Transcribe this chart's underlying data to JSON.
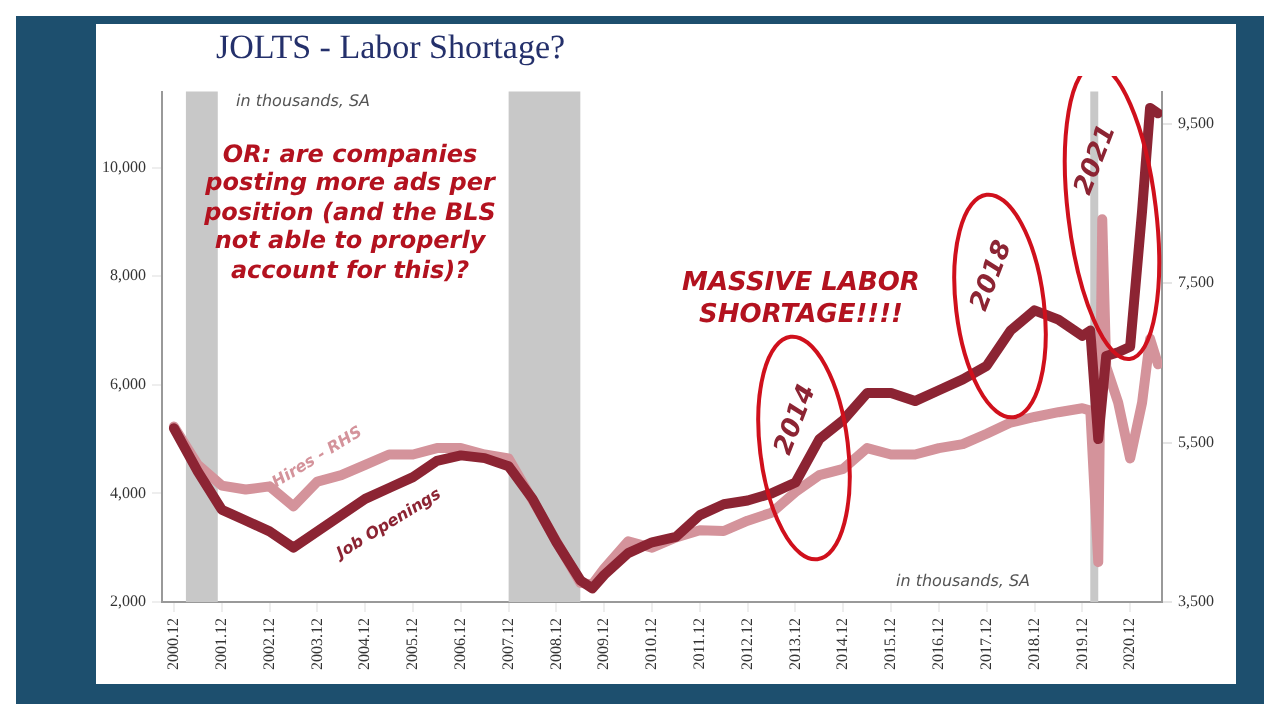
{
  "chart_data": {
    "type": "line",
    "title": "JOLTS - Labor Shortage?",
    "annotations": [
      "in thousands, SA",
      "OR: are companies posting more ads per position (and the BLS not able to properly account for this)?",
      "MASSIVE LABOR SHORTAGE!!!!",
      "in thousands, SA",
      "2014",
      "2018",
      "2021"
    ],
    "series": [
      {
        "name": "Hires - RHS",
        "color": "#d4939b",
        "axis": "y2",
        "x": [
          "2000-12",
          "2001-06",
          "2001-12",
          "2002-06",
          "2002-12",
          "2003-06",
          "2003-12",
          "2004-06",
          "2004-12",
          "2005-06",
          "2005-12",
          "2006-06",
          "2006-12",
          "2007-06",
          "2007-12",
          "2008-06",
          "2008-12",
          "2009-06",
          "2009-09",
          "2009-12",
          "2010-06",
          "2010-12",
          "2011-06",
          "2011-12",
          "2012-06",
          "2012-12",
          "2013-06",
          "2013-12",
          "2014-06",
          "2014-12",
          "2015-06",
          "2015-12",
          "2016-06",
          "2016-12",
          "2017-06",
          "2017-12",
          "2018-06",
          "2018-12",
          "2019-06",
          "2019-12",
          "2020-02",
          "2020-04",
          "2020-05",
          "2020-06",
          "2020-09",
          "2020-12",
          "2021-03",
          "2021-05",
          "2021-07"
        ],
        "values": [
          5700,
          5220,
          4960,
          4910,
          4950,
          4700,
          5010,
          5090,
          5220,
          5350,
          5350,
          5430,
          5430,
          5350,
          5300,
          4780,
          4260,
          3740,
          3720,
          3920,
          4260,
          4180,
          4310,
          4400,
          4390,
          4520,
          4620,
          4880,
          5090,
          5170,
          5430,
          5350,
          5350,
          5430,
          5480,
          5610,
          5750,
          5820,
          5880,
          5930,
          5900,
          4000,
          8300,
          6450,
          6000,
          5300,
          6000,
          6800,
          6480
        ]
      },
      {
        "name": "Job Openings",
        "color": "#8c2433",
        "axis": "y",
        "x": [
          "2000-12",
          "2001-06",
          "2001-12",
          "2002-06",
          "2002-12",
          "2003-06",
          "2003-12",
          "2004-06",
          "2004-12",
          "2005-06",
          "2005-12",
          "2006-06",
          "2006-12",
          "2007-06",
          "2007-12",
          "2008-06",
          "2008-12",
          "2009-06",
          "2009-09",
          "2009-12",
          "2010-06",
          "2010-12",
          "2011-06",
          "2011-12",
          "2012-06",
          "2012-12",
          "2013-06",
          "2013-12",
          "2014-06",
          "2014-12",
          "2015-06",
          "2015-12",
          "2016-06",
          "2016-12",
          "2017-06",
          "2017-12",
          "2018-06",
          "2018-12",
          "2019-06",
          "2019-12",
          "2020-02",
          "2020-04",
          "2020-06",
          "2020-09",
          "2020-12",
          "2021-03",
          "2021-05",
          "2021-07"
        ],
        "values": [
          5200,
          4400,
          3700,
          3500,
          3300,
          3000,
          3300,
          3600,
          3900,
          4100,
          4300,
          4600,
          4700,
          4650,
          4500,
          3900,
          3100,
          2400,
          2250,
          2500,
          2900,
          3100,
          3200,
          3600,
          3800,
          3870,
          4000,
          4200,
          5000,
          5350,
          5850,
          5850,
          5700,
          5900,
          6100,
          6350,
          7000,
          7370,
          7200,
          6900,
          7000,
          5000,
          6530,
          6600,
          6700,
          9200,
          11100,
          11000
        ]
      }
    ],
    "xlim": [
      "2000-09",
      "2021-08"
    ],
    "xticks": [
      {
        "value": "2000-12",
        "label": "2000.12"
      },
      {
        "value": "2001-12",
        "label": "2001.12"
      },
      {
        "value": "2002-12",
        "label": "2002.12"
      },
      {
        "value": "2003-12",
        "label": "2003.12"
      },
      {
        "value": "2004-12",
        "label": "2004.12"
      },
      {
        "value": "2005-12",
        "label": "2005.12"
      },
      {
        "value": "2006-12",
        "label": "2006.12"
      },
      {
        "value": "2007-12",
        "label": "2007.12"
      },
      {
        "value": "2008-12",
        "label": "2008.12"
      },
      {
        "value": "2009-12",
        "label": "2009.12"
      },
      {
        "value": "2010-12",
        "label": "2010.12"
      },
      {
        "value": "2011-12",
        "label": "2011.12"
      },
      {
        "value": "2012-12",
        "label": "2012.12"
      },
      {
        "value": "2013-12",
        "label": "2013.12"
      },
      {
        "value": "2014-12",
        "label": "2014.12"
      },
      {
        "value": "2015-12",
        "label": "2015.12"
      },
      {
        "value": "2016-12",
        "label": "2016.12"
      },
      {
        "value": "2017-12",
        "label": "2017.12"
      },
      {
        "value": "2018-12",
        "label": "2018.12"
      },
      {
        "value": "2019-12",
        "label": "2019.12"
      },
      {
        "value": "2020-12",
        "label": "2020.12"
      }
    ],
    "ylim": [
      2000,
      11400
    ],
    "yticks": [
      {
        "value": 2000,
        "label": "2,000"
      },
      {
        "value": 4000,
        "label": "4,000"
      },
      {
        "value": 6000,
        "label": "6,000"
      },
      {
        "value": 8000,
        "label": "8,000"
      },
      {
        "value": 10000,
        "label": "10,000"
      }
    ],
    "y2lim": [
      3500,
      9900
    ],
    "y2ticks": [
      {
        "value": 3500,
        "label": "3,500"
      },
      {
        "value": 5500,
        "label": "5,500"
      },
      {
        "value": 7500,
        "label": "7,500"
      },
      {
        "value": 9500,
        "label": "9,500"
      }
    ],
    "bands": [
      {
        "axis": "x",
        "from": "2001-03",
        "to": "2001-11",
        "color": "#c8c8c8"
      },
      {
        "axis": "x",
        "from": "2007-12",
        "to": "2009-06",
        "color": "#c8c8c8"
      },
      {
        "axis": "x",
        "from": "2020-02",
        "to": "2020-04",
        "color": "#c8c8c8"
      }
    ],
    "legend": false,
    "marker": "none",
    "line_style": "solid"
  }
}
